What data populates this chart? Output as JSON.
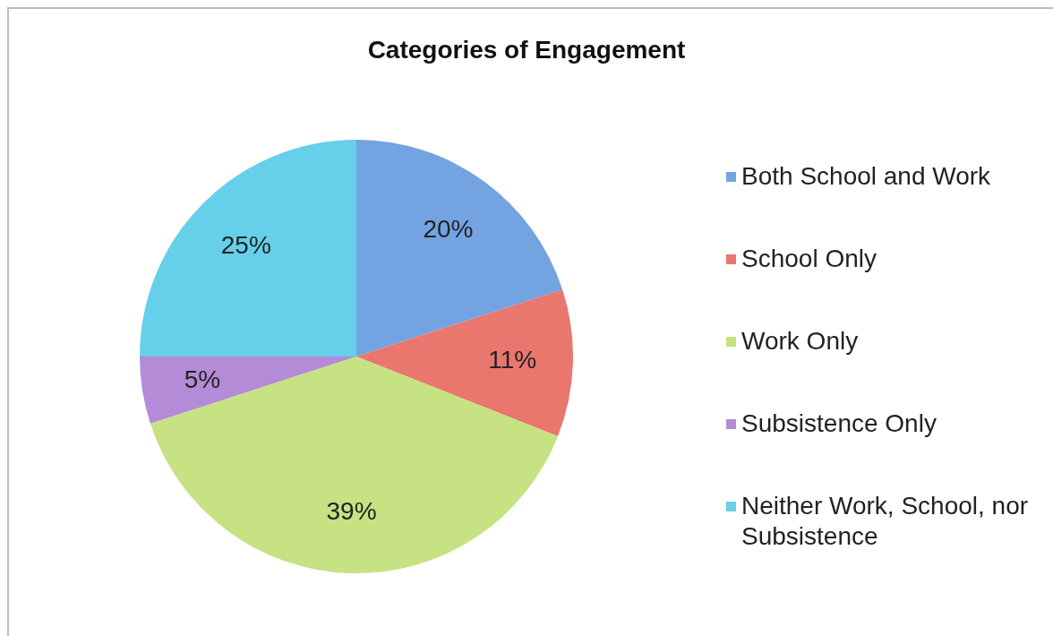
{
  "chart_data": {
    "type": "pie",
    "title": "Categories of Engagement",
    "categories": [
      "Both School and Work",
      "School Only",
      "Work Only",
      "Subsistence Only",
      "Neither Work, School, nor Subsistence"
    ],
    "values": [
      20,
      11,
      39,
      5,
      25
    ],
    "value_labels": [
      "20%",
      "11%",
      "39%",
      "5%",
      "25%"
    ],
    "colors": [
      "#74a3e2",
      "#e9776e",
      "#c6e283",
      "#b48bd6",
      "#66d0ea"
    ],
    "legend": "right"
  }
}
